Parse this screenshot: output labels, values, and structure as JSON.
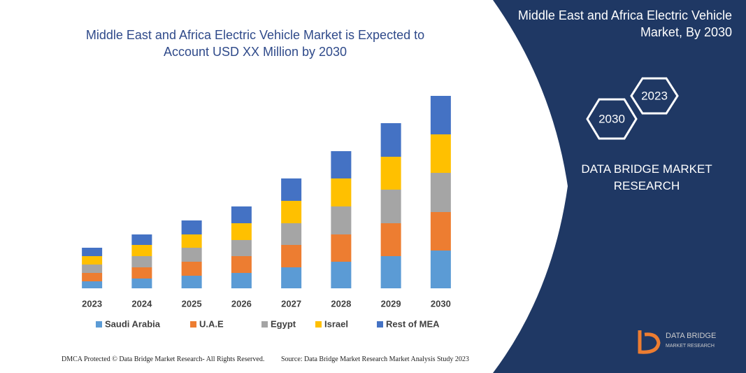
{
  "chart_data": {
    "type": "stacked_bar",
    "title": "Middle East and Africa Electric Vehicle Market is Expected to Account USD XX Million by 2030",
    "categories": [
      "2023",
      "2024",
      "2025",
      "2026",
      "2027",
      "2028",
      "2029",
      "2030"
    ],
    "series": [
      {
        "name": "Saudi Arabia",
        "color": "#5b9bd5",
        "values": [
          10,
          14,
          18,
          22,
          30,
          38,
          46,
          54
        ]
      },
      {
        "name": "U.A.E",
        "color": "#ed7d31",
        "values": [
          12,
          16,
          20,
          24,
          32,
          39,
          47,
          55
        ]
      },
      {
        "name": "Egypt",
        "color": "#a5a5a5",
        "values": [
          12,
          16,
          20,
          23,
          31,
          40,
          48,
          56
        ]
      },
      {
        "name": "Israel",
        "color": "#ffc000",
        "values": [
          12,
          16,
          19,
          24,
          32,
          40,
          47,
          55
        ]
      },
      {
        "name": "Rest of MEA",
        "color": "#4472c4",
        "values": [
          12,
          15,
          20,
          24,
          32,
          39,
          48,
          55
        ]
      }
    ]
  },
  "panel": {
    "heading": "Middle East and Africa Electric Vehicle Market, By 2030",
    "badges": [
      "2023",
      "2030"
    ],
    "brand": "DATA BRIDGE MARKET RESEARCH",
    "logo": {
      "name": "DATA BRIDGE",
      "tagline": "MARKET RESEARCH"
    }
  },
  "footer": {
    "left": "DMCA Protected © Data Bridge Market Research- All Rights Reserved.",
    "right": "Source: Data Bridge Market Research Market Analysis Study 2023"
  }
}
